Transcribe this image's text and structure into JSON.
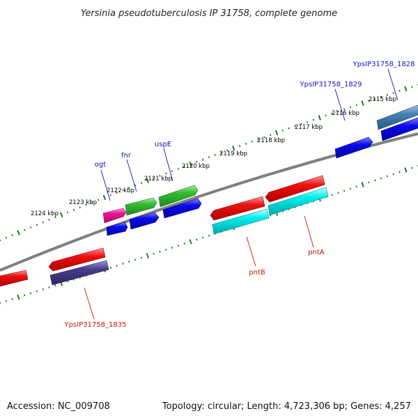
{
  "title": "Yersinia pseudotuberculosis IP 31758, complete genome",
  "footer": {
    "accession": "Accession: NC_009708",
    "stats": "Topology: circular; Length: 4,723,306 bp; Genes: 4,257"
  },
  "colors": {
    "backbone": "#7f7f7f",
    "tick": "#1a7a1a",
    "label_forward": "#1010c0",
    "label_reverse": "#cc1010"
  },
  "kbp_ticks": [
    "2124 kbp",
    "2123 kbp",
    "2122 kbp",
    "2121 kbp",
    "2120 kbp",
    "2119 kbp",
    "2118 kbp",
    "2117 kbp",
    "2116 kbp",
    "2115 kbp"
  ],
  "gene_labels": {
    "ogt": "ogt",
    "fnr": "fnr",
    "uspE": "uspE",
    "ypsip31758_1829": "YpsIP31758_1829",
    "ypsip31758_1828": "YpsIP31758_1828",
    "pntb": "pntB",
    "pnta": "pntA",
    "ypsip31758_1835": "YpsIP31758_1835"
  },
  "features": [
    {
      "name": "ogt",
      "strand": "+",
      "color": "#ee1493"
    },
    {
      "name": "ogt-cds",
      "strand": "+",
      "color": "#0000ee"
    },
    {
      "name": "fnr",
      "strand": "+",
      "color": "#33bb33"
    },
    {
      "name": "fnr-cds",
      "strand": "+",
      "color": "#0000ee"
    },
    {
      "name": "uspE",
      "strand": "+",
      "color": "#33bb33"
    },
    {
      "name": "uspE-cds",
      "strand": "+",
      "color": "#0000ee"
    },
    {
      "name": "YpsIP31758_1829",
      "strand": "+",
      "color": "#0000ee"
    },
    {
      "name": "YpsIP31758_1828",
      "strand": "+",
      "color": "#4682b4"
    },
    {
      "name": "YpsIP31758_1828-cds",
      "strand": "+",
      "color": "#0000ee"
    },
    {
      "name": "pntB",
      "strand": "-",
      "color": "#ee0000"
    },
    {
      "name": "pntB-cds",
      "strand": "-",
      "color": "#00eeee"
    },
    {
      "name": "pntA",
      "strand": "-",
      "color": "#ee0000"
    },
    {
      "name": "pntA-cds",
      "strand": "-",
      "color": "#00eeee"
    },
    {
      "name": "YpsIP31758_1835",
      "strand": "-",
      "color": "#ee0000"
    },
    {
      "name": "YpsIP31758_1835-cds",
      "strand": "-",
      "color": "#483d8b"
    },
    {
      "name": "edge-feature",
      "strand": "-",
      "color": "#ee0000"
    }
  ]
}
